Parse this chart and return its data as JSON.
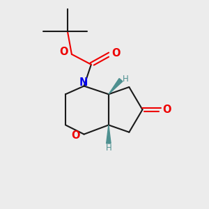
{
  "background_color": "#ececec",
  "bond_color": "#1a1a1a",
  "N_color": "#0000ee",
  "O_color": "#ee0000",
  "teal_color": "#4e9090",
  "line_width": 1.5,
  "fig_width": 3.0,
  "fig_height": 3.0,
  "dpi": 100,
  "xlim": [
    0,
    10
  ],
  "ylim": [
    0,
    10
  ]
}
